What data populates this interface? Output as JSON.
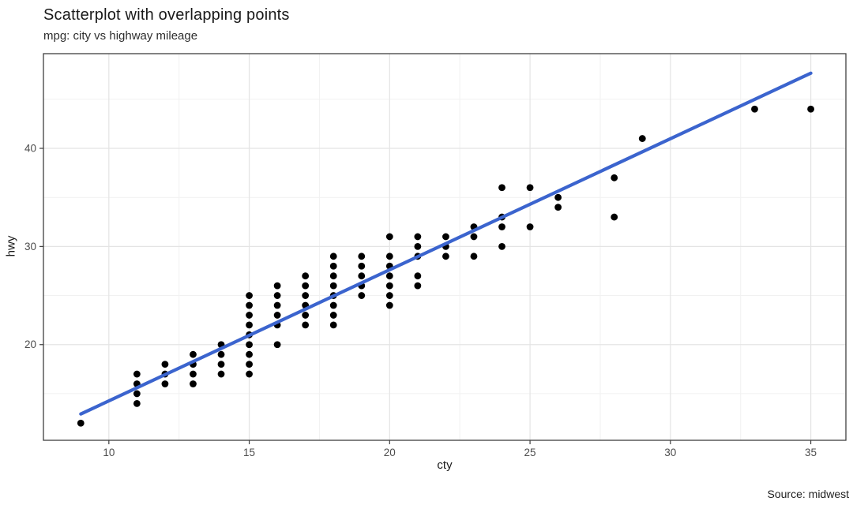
{
  "header": {
    "title": "Scatterplot with overlapping points",
    "subtitle": "mpg: city vs highway mileage"
  },
  "caption": "Source: midwest",
  "chart_data": {
    "type": "scatter",
    "title": "Scatterplot with overlapping points",
    "subtitle": "mpg: city vs highway mileage",
    "xlabel": "cty",
    "ylabel": "hwy",
    "caption": "Source: midwest",
    "x_domain": [
      7.67,
      36.25
    ],
    "y_domain": [
      10.25,
      49.65
    ],
    "x_ticks": [
      10,
      15,
      20,
      25,
      30,
      35
    ],
    "y_ticks": [
      20,
      30,
      40
    ],
    "x_minor_ticks": [
      12.5,
      17.5,
      22.5,
      27.5,
      32.5
    ],
    "y_minor_ticks": [
      15,
      25,
      35,
      45
    ],
    "grid": true,
    "legend": false,
    "points": [
      {
        "cty": 9,
        "hwy_values": [
          12
        ]
      },
      {
        "cty": 11,
        "hwy_values": [
          14,
          15,
          16,
          17
        ]
      },
      {
        "cty": 12,
        "hwy_values": [
          16,
          17,
          18
        ]
      },
      {
        "cty": 13,
        "hwy_values": [
          16,
          17,
          18,
          19
        ]
      },
      {
        "cty": 14,
        "hwy_values": [
          17,
          18,
          19,
          20
        ]
      },
      {
        "cty": 15,
        "hwy_values": [
          17,
          18,
          19,
          20,
          21,
          22,
          23,
          24,
          25
        ]
      },
      {
        "cty": 16,
        "hwy_values": [
          20,
          22,
          23,
          24,
          25,
          26
        ]
      },
      {
        "cty": 17,
        "hwy_values": [
          22,
          23,
          24,
          25,
          26,
          27
        ]
      },
      {
        "cty": 18,
        "hwy_values": [
          22,
          23,
          24,
          25,
          26,
          27,
          28,
          29
        ]
      },
      {
        "cty": 19,
        "hwy_values": [
          25,
          26,
          27,
          28,
          29
        ]
      },
      {
        "cty": 20,
        "hwy_values": [
          24,
          25,
          26,
          27,
          28,
          29,
          31
        ]
      },
      {
        "cty": 21,
        "hwy_values": [
          26,
          27,
          29,
          30,
          31
        ]
      },
      {
        "cty": 22,
        "hwy_values": [
          29,
          30,
          31
        ]
      },
      {
        "cty": 23,
        "hwy_values": [
          29,
          31,
          32
        ]
      },
      {
        "cty": 24,
        "hwy_values": [
          30,
          32,
          33,
          36
        ]
      },
      {
        "cty": 25,
        "hwy_values": [
          32,
          36
        ]
      },
      {
        "cty": 26,
        "hwy_values": [
          34,
          35
        ]
      },
      {
        "cty": 28,
        "hwy_values": [
          33,
          37
        ]
      },
      {
        "cty": 29,
        "hwy_values": [
          41
        ]
      },
      {
        "cty": 33,
        "hwy_values": [
          44
        ]
      },
      {
        "cty": 35,
        "hwy_values": [
          44
        ]
      }
    ],
    "trend_line": {
      "type": "linear-fit",
      "x_start": 9,
      "y_start": 12.93,
      "x_end": 35,
      "y_end": 47.66
    },
    "point_radius": 4.4,
    "line_width": 4.2,
    "colors": {
      "point": "#000000",
      "trend_line": "#3B64CE",
      "grid_major": "#e4e4e4",
      "grid_minor": "#f1f1f1",
      "panel_border": "#3f3f3f",
      "tick_mark": "#3f3f3f",
      "tick_label": "#4d4d4d",
      "background": "#ffffff"
    }
  }
}
